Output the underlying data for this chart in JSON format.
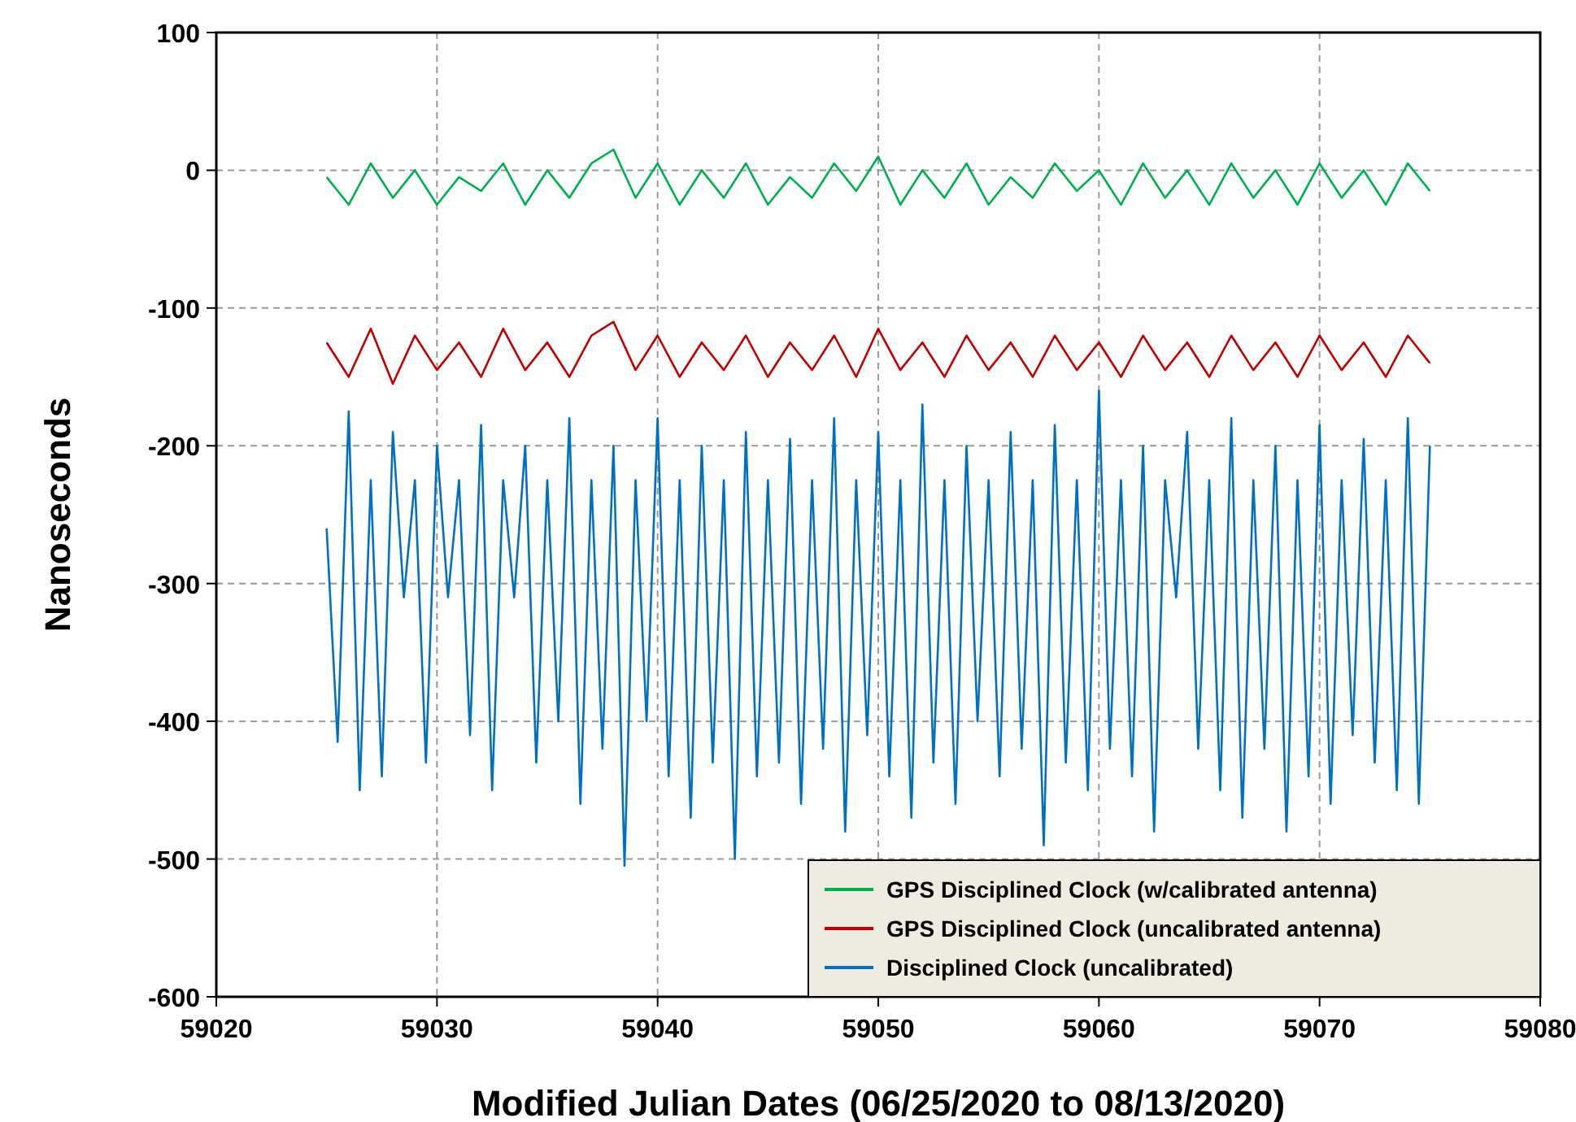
{
  "chart_data": {
    "type": "line",
    "xlabel": "Modified Julian Dates  (06/25/2020 to 08/13/2020)",
    "ylabel": "Nanoseconds",
    "xlim": [
      59020,
      59080
    ],
    "xticks": [
      59020,
      59030,
      59040,
      59050,
      59060,
      59070,
      59080
    ],
    "ylim": [
      -600,
      100
    ],
    "yticks": [
      -600,
      -500,
      -400,
      -300,
      -200,
      -100,
      0,
      100
    ],
    "grid": true,
    "legend": "bottom right",
    "line_style": "solid",
    "marker": "none",
    "series": [
      {
        "name": "GPS Disciplined Clock (w/calibrated antenna)",
        "color": "#00b050",
        "x": [
          59025,
          59026,
          59027,
          59028,
          59029,
          59030,
          59031,
          59032,
          59033,
          59034,
          59035,
          59036,
          59037,
          59038,
          59039,
          59040,
          59041,
          59042,
          59043,
          59044,
          59045,
          59046,
          59047,
          59048,
          59049,
          59050,
          59051,
          59052,
          59053,
          59054,
          59055,
          59056,
          59057,
          59058,
          59059,
          59060,
          59061,
          59062,
          59063,
          59064,
          59065,
          59066,
          59067,
          59068,
          59069,
          59070,
          59071,
          59072,
          59073,
          59074,
          59075
        ],
        "values": [
          -5,
          -25,
          5,
          -20,
          0,
          -25,
          -5,
          -15,
          5,
          -25,
          0,
          -20,
          5,
          15,
          -20,
          5,
          -25,
          0,
          -20,
          5,
          -25,
          -5,
          -20,
          5,
          -15,
          10,
          -25,
          0,
          -20,
          5,
          -25,
          -5,
          -20,
          5,
          -15,
          0,
          -25,
          5,
          -20,
          0,
          -25,
          5,
          -20,
          0,
          -25,
          5,
          -20,
          0,
          -25,
          5,
          -15
        ]
      },
      {
        "name": "GPS Disciplined Clock (uncalibrated antenna)",
        "color": "#c00000",
        "x": [
          59025,
          59026,
          59027,
          59028,
          59029,
          59030,
          59031,
          59032,
          59033,
          59034,
          59035,
          59036,
          59037,
          59038,
          59039,
          59040,
          59041,
          59042,
          59043,
          59044,
          59045,
          59046,
          59047,
          59048,
          59049,
          59050,
          59051,
          59052,
          59053,
          59054,
          59055,
          59056,
          59057,
          59058,
          59059,
          59060,
          59061,
          59062,
          59063,
          59064,
          59065,
          59066,
          59067,
          59068,
          59069,
          59070,
          59071,
          59072,
          59073,
          59074,
          59075
        ],
        "values": [
          -125,
          -150,
          -115,
          -155,
          -120,
          -145,
          -125,
          -150,
          -115,
          -145,
          -125,
          -150,
          -120,
          -110,
          -145,
          -120,
          -150,
          -125,
          -145,
          -120,
          -150,
          -125,
          -145,
          -120,
          -150,
          -115,
          -145,
          -125,
          -150,
          -120,
          -145,
          -125,
          -150,
          -120,
          -145,
          -125,
          -150,
          -120,
          -145,
          -125,
          -150,
          -120,
          -145,
          -125,
          -150,
          -120,
          -145,
          -125,
          -150,
          -120,
          -140
        ]
      },
      {
        "name": "Disciplined Clock (uncalibrated)",
        "color": "#0070c0",
        "x": [
          59025,
          59025.5,
          59026,
          59026.5,
          59027,
          59027.5,
          59028,
          59028.5,
          59029,
          59029.5,
          59030,
          59030.5,
          59031,
          59031.5,
          59032,
          59032.5,
          59033,
          59033.5,
          59034,
          59034.5,
          59035,
          59035.5,
          59036,
          59036.5,
          59037,
          59037.5,
          59038,
          59038.5,
          59039,
          59039.5,
          59040,
          59040.5,
          59041,
          59041.5,
          59042,
          59042.5,
          59043,
          59043.5,
          59044,
          59044.5,
          59045,
          59045.5,
          59046,
          59046.5,
          59047,
          59047.5,
          59048,
          59048.5,
          59049,
          59049.5,
          59050,
          59050.5,
          59051,
          59051.5,
          59052,
          59052.5,
          59053,
          59053.5,
          59054,
          59054.5,
          59055,
          59055.5,
          59056,
          59056.5,
          59057,
          59057.5,
          59058,
          59058.5,
          59059,
          59059.5,
          59060,
          59060.5,
          59061,
          59061.5,
          59062,
          59062.5,
          59063,
          59063.5,
          59064,
          59064.5,
          59065,
          59065.5,
          59066,
          59066.5,
          59067,
          59067.5,
          59068,
          59068.5,
          59069,
          59069.5,
          59070,
          59070.5,
          59071,
          59071.5,
          59072,
          59072.5,
          59073,
          59073.5,
          59074,
          59074.5,
          59075
        ],
        "values": [
          -260,
          -415,
          -175,
          -450,
          -225,
          -440,
          -190,
          -310,
          -225,
          -430,
          -200,
          -310,
          -225,
          -410,
          -185,
          -450,
          -225,
          -310,
          -200,
          -430,
          -225,
          -400,
          -180,
          -460,
          -225,
          -420,
          -200,
          -505,
          -225,
          -400,
          -180,
          -440,
          -225,
          -470,
          -200,
          -430,
          -225,
          -500,
          -190,
          -440,
          -225,
          -430,
          -195,
          -460,
          -225,
          -420,
          -180,
          -480,
          -225,
          -410,
          -190,
          -440,
          -225,
          -470,
          -170,
          -430,
          -225,
          -460,
          -200,
          -400,
          -225,
          -440,
          -190,
          -420,
          -225,
          -490,
          -185,
          -430,
          -225,
          -450,
          -160,
          -420,
          -225,
          -440,
          -200,
          -480,
          -225,
          -310,
          -190,
          -420,
          -225,
          -450,
          -180,
          -470,
          -225,
          -420,
          -200,
          -480,
          -225,
          -440,
          -185,
          -460,
          -225,
          -410,
          -195,
          -430,
          -225,
          -450,
          -180,
          -460,
          -200
        ]
      }
    ]
  }
}
